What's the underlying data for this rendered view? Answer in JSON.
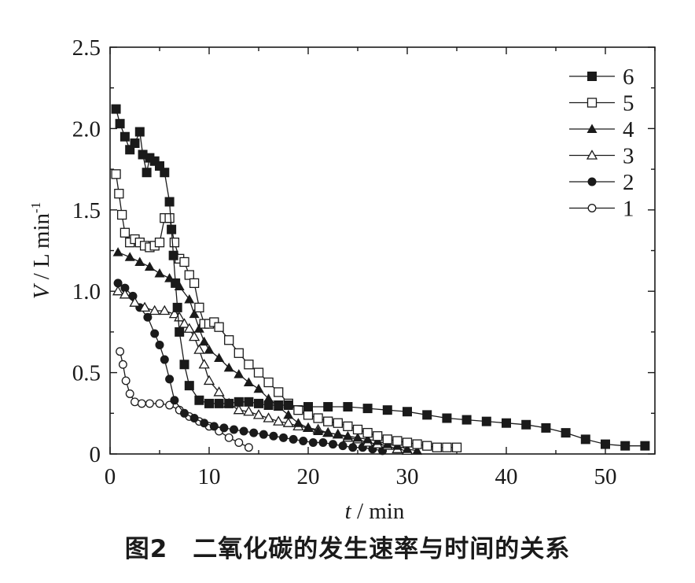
{
  "caption": "图2　二氧化碳的发生速率与时间的关系",
  "chart_data": {
    "type": "line",
    "xlabel_italic": "t",
    "xlabel_unit": " / min",
    "ylabel_italic": "V",
    "ylabel_unit": " / L min",
    "ylabel_sup": "-1",
    "xlim": [
      0,
      55
    ],
    "ylim": [
      0,
      2.5
    ],
    "xticks": [
      0,
      10,
      20,
      30,
      40,
      50
    ],
    "yticks": [
      0,
      0.5,
      1.0,
      1.5,
      2.0,
      2.5
    ],
    "ytick_labels": [
      "0",
      "0.5",
      "1.0",
      "1.5",
      "2.0",
      "2.5"
    ],
    "grid": false,
    "legend_position": "top-right",
    "legend_order": [
      "6",
      "5",
      "4",
      "3",
      "2",
      "1"
    ],
    "series": [
      {
        "name": "1",
        "marker": "open-circle",
        "x": [
          1.0,
          1.3,
          1.6,
          2.0,
          2.5,
          3.2,
          4.0,
          5.0,
          6.0,
          7.0,
          8.0,
          9.0,
          10.0,
          11.0,
          12.0,
          13.0,
          14.0
        ],
        "y": [
          0.63,
          0.55,
          0.45,
          0.37,
          0.32,
          0.31,
          0.31,
          0.31,
          0.3,
          0.27,
          0.23,
          0.2,
          0.17,
          0.14,
          0.1,
          0.07,
          0.04
        ]
      },
      {
        "name": "2",
        "marker": "filled-circle",
        "x": [
          0.8,
          1.5,
          2.3,
          3.0,
          3.8,
          4.5,
          5.0,
          5.5,
          6.0,
          6.5,
          7.5,
          8.5,
          9.5,
          10.5,
          11.5,
          12.5,
          13.5,
          14.5,
          15.5,
          16.5,
          17.5,
          18.5,
          19.5,
          20.5,
          21.5,
          22.5,
          23.5,
          24.5,
          25.5,
          26.5,
          27.5
        ],
        "y": [
          1.05,
          1.02,
          0.97,
          0.9,
          0.84,
          0.74,
          0.67,
          0.58,
          0.46,
          0.33,
          0.25,
          0.22,
          0.19,
          0.17,
          0.16,
          0.15,
          0.14,
          0.13,
          0.12,
          0.11,
          0.1,
          0.09,
          0.08,
          0.07,
          0.07,
          0.06,
          0.05,
          0.04,
          0.04,
          0.03,
          0.02
        ]
      },
      {
        "name": "3",
        "marker": "open-triangle-up",
        "x": [
          0.8,
          1.5,
          2.5,
          3.5,
          4.5,
          5.5,
          6.5,
          7.0,
          7.5,
          8.0,
          8.5,
          9.0,
          9.5,
          10.0,
          11.0,
          12.0,
          13.0,
          14.0,
          15.0,
          16.0,
          17.0,
          18.0,
          19.0,
          20.0,
          21.0,
          22.0,
          23.0,
          24.0,
          25.0,
          26.0,
          27.0,
          28.0,
          29.0,
          30.0
        ],
        "y": [
          1.0,
          0.98,
          0.93,
          0.9,
          0.88,
          0.88,
          0.86,
          0.84,
          0.8,
          0.77,
          0.72,
          0.64,
          0.55,
          0.45,
          0.38,
          0.31,
          0.27,
          0.26,
          0.24,
          0.22,
          0.2,
          0.19,
          0.17,
          0.16,
          0.15,
          0.13,
          0.12,
          0.1,
          0.09,
          0.07,
          0.06,
          0.05,
          0.03,
          0.02
        ]
      },
      {
        "name": "4",
        "marker": "filled-triangle-up",
        "x": [
          0.8,
          2.0,
          3.0,
          4.0,
          5.0,
          6.0,
          7.0,
          8.0,
          8.5,
          9.0,
          9.5,
          10.0,
          11.0,
          12.0,
          13.0,
          14.0,
          15.0,
          16.0,
          17.0,
          18.0,
          19.0,
          20.0,
          21.0,
          22.0,
          23.0,
          24.0,
          25.0,
          26.0,
          27.0,
          28.0,
          29.0,
          30.0,
          31.0
        ],
        "y": [
          1.24,
          1.21,
          1.18,
          1.15,
          1.11,
          1.08,
          1.03,
          0.95,
          0.86,
          0.77,
          0.69,
          0.64,
          0.59,
          0.53,
          0.49,
          0.44,
          0.4,
          0.34,
          0.29,
          0.24,
          0.19,
          0.16,
          0.14,
          0.13,
          0.12,
          0.11,
          0.1,
          0.09,
          0.08,
          0.06,
          0.05,
          0.03,
          0.02
        ]
      },
      {
        "name": "5",
        "marker": "open-square",
        "x": [
          0.6,
          0.9,
          1.2,
          1.5,
          2.0,
          2.5,
          3.0,
          3.5,
          4.0,
          4.5,
          5.0,
          5.5,
          6.0,
          6.5,
          7.0,
          7.5,
          8.0,
          8.5,
          9.0,
          9.5,
          10.0,
          10.5,
          11.0,
          12.0,
          13.0,
          14.0,
          15.0,
          16.0,
          17.0,
          18.0,
          19.0,
          20.0,
          21.0,
          22.0,
          23.0,
          24.0,
          25.0,
          26.0,
          27.0,
          28.0,
          29.0,
          30.0,
          31.0,
          32.0,
          33.0,
          34.0,
          35.0
        ],
        "y": [
          1.72,
          1.6,
          1.47,
          1.36,
          1.3,
          1.32,
          1.3,
          1.28,
          1.27,
          1.28,
          1.3,
          1.45,
          1.45,
          1.3,
          1.2,
          1.18,
          1.1,
          1.05,
          0.9,
          0.8,
          0.8,
          0.81,
          0.78,
          0.7,
          0.62,
          0.55,
          0.5,
          0.44,
          0.38,
          0.31,
          0.27,
          0.24,
          0.22,
          0.2,
          0.19,
          0.17,
          0.15,
          0.13,
          0.11,
          0.09,
          0.08,
          0.07,
          0.06,
          0.05,
          0.04,
          0.04,
          0.04
        ]
      },
      {
        "name": "6",
        "marker": "filled-square",
        "x": [
          0.6,
          1.0,
          1.5,
          2.0,
          2.5,
          3.0,
          3.3,
          3.7,
          4.0,
          4.5,
          5.0,
          5.5,
          6.0,
          6.2,
          6.4,
          6.6,
          6.8,
          7.0,
          7.5,
          8.0,
          9.0,
          10.0,
          11.0,
          12.0,
          13.0,
          14.0,
          15.0,
          16.0,
          17.0,
          18.0,
          20.0,
          22.0,
          24.0,
          26.0,
          28.0,
          30.0,
          32.0,
          34.0,
          36.0,
          38.0,
          40.0,
          42.0,
          44.0,
          46.0,
          48.0,
          50.0,
          52.0,
          54.0
        ],
        "y": [
          2.12,
          2.03,
          1.95,
          1.87,
          1.91,
          1.98,
          1.84,
          1.73,
          1.82,
          1.8,
          1.77,
          1.73,
          1.55,
          1.38,
          1.22,
          1.05,
          0.9,
          0.75,
          0.55,
          0.42,
          0.33,
          0.31,
          0.31,
          0.31,
          0.32,
          0.32,
          0.31,
          0.3,
          0.3,
          0.3,
          0.29,
          0.29,
          0.29,
          0.28,
          0.27,
          0.26,
          0.24,
          0.22,
          0.21,
          0.2,
          0.19,
          0.18,
          0.16,
          0.13,
          0.09,
          0.06,
          0.05,
          0.05
        ]
      }
    ]
  }
}
